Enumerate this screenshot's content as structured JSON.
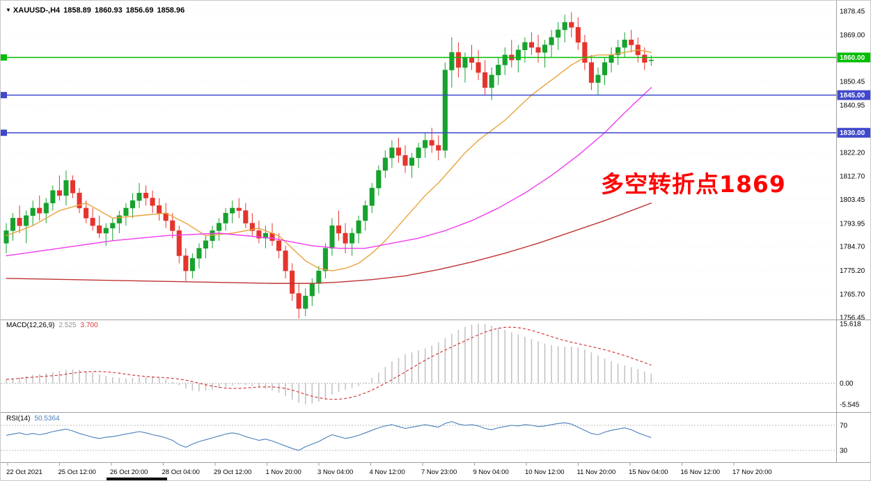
{
  "quote_bar": {
    "dropdown_icon": "▼",
    "symbol": "XAUUSD-,H4",
    "open": "1858.89",
    "high": "1860.93",
    "low": "1856.69",
    "close": "1858.96"
  },
  "annotation": {
    "text": "多空转折点1869",
    "color": "#FF0000"
  },
  "panels": {
    "macd": {
      "label": "MACD(12,26,9)",
      "value_main": "2.525",
      "value_signal": "3.700",
      "axis_labels": [
        "15.618",
        "0.00",
        "-5.545"
      ]
    },
    "rsi": {
      "label": "RSI(14)",
      "value": "50.5364",
      "levels": [
        "70",
        "30"
      ]
    }
  },
  "price_axis": {
    "ticks": [
      "1878.45",
      "1869.00",
      "1850.45",
      "1840.95",
      "1822.20",
      "1812.70",
      "1803.45",
      "1793.95",
      "1784.70",
      "1775.20",
      "1765.70",
      "1756.45"
    ]
  },
  "time_axis": {
    "labels": [
      "22 Oct 2021",
      "25 Oct 12:00",
      "26 Oct 20:00",
      "28 Oct 04:00",
      "29 Oct 12:00",
      "1 Nov 20:00",
      "3 Nov 04:00",
      "4 Nov 12:00",
      "7 Nov 23:00",
      "9 Nov 04:00",
      "10 Nov 12:00",
      "11 Nov 20:00",
      "15 Nov 04:00",
      "16 Nov 12:00",
      "17 Nov 20:00"
    ]
  },
  "chart_data": {
    "type": "candlestick",
    "symbol": "XAUUSD",
    "timeframe": "H4",
    "price_range": [
      1756.45,
      1878.45
    ],
    "candle_colors": {
      "up": "#16A22D",
      "down": "#E5342D"
    },
    "candles": [
      [
        1786,
        1794,
        1782,
        1791
      ],
      [
        1791,
        1798,
        1787,
        1796
      ],
      [
        1796,
        1801,
        1790,
        1793
      ],
      [
        1793,
        1799,
        1786,
        1797
      ],
      [
        1797,
        1803,
        1793,
        1800
      ],
      [
        1800,
        1805,
        1795,
        1798
      ],
      [
        1798,
        1804,
        1794,
        1802
      ],
      [
        1802,
        1809,
        1799,
        1807
      ],
      [
        1807,
        1813,
        1803,
        1805
      ],
      [
        1805,
        1815,
        1801,
        1811
      ],
      [
        1811,
        1813,
        1804,
        1806
      ],
      [
        1806,
        1808,
        1798,
        1800
      ],
      [
        1800,
        1803,
        1794,
        1796
      ],
      [
        1796,
        1800,
        1791,
        1793
      ],
      [
        1793,
        1797,
        1788,
        1790
      ],
      [
        1790,
        1794,
        1785,
        1792
      ],
      [
        1792,
        1796,
        1787,
        1794
      ],
      [
        1794,
        1799,
        1790,
        1797
      ],
      [
        1797,
        1802,
        1793,
        1800
      ],
      [
        1800,
        1806,
        1796,
        1803
      ],
      [
        1803,
        1810,
        1800,
        1806
      ],
      [
        1806,
        1809,
        1801,
        1804
      ],
      [
        1804,
        1807,
        1798,
        1801
      ],
      [
        1801,
        1804,
        1795,
        1798
      ],
      [
        1798,
        1802,
        1792,
        1795
      ],
      [
        1795,
        1798,
        1788,
        1791
      ],
      [
        1791,
        1793,
        1778,
        1781
      ],
      [
        1781,
        1784,
        1771,
        1775
      ],
      [
        1775,
        1782,
        1772,
        1780
      ],
      [
        1780,
        1786,
        1776,
        1784
      ],
      [
        1784,
        1789,
        1780,
        1787
      ],
      [
        1787,
        1793,
        1784,
        1791
      ],
      [
        1791,
        1796,
        1787,
        1794
      ],
      [
        1794,
        1800,
        1791,
        1798
      ],
      [
        1798,
        1803,
        1794,
        1800
      ],
      [
        1800,
        1804,
        1796,
        1799
      ],
      [
        1799,
        1802,
        1792,
        1794
      ],
      [
        1794,
        1798,
        1789,
        1791
      ],
      [
        1791,
        1795,
        1786,
        1788
      ],
      [
        1788,
        1793,
        1784,
        1790
      ],
      [
        1790,
        1794,
        1785,
        1787
      ],
      [
        1787,
        1790,
        1780,
        1783
      ],
      [
        1783,
        1785,
        1772,
        1775
      ],
      [
        1775,
        1778,
        1763,
        1766
      ],
      [
        1766,
        1770,
        1756,
        1760
      ],
      [
        1760,
        1768,
        1757,
        1765
      ],
      [
        1765,
        1772,
        1761,
        1770
      ],
      [
        1770,
        1777,
        1766,
        1775
      ],
      [
        1775,
        1786,
        1772,
        1784
      ],
      [
        1784,
        1796,
        1781,
        1793
      ],
      [
        1793,
        1799,
        1787,
        1790
      ],
      [
        1790,
        1794,
        1782,
        1786
      ],
      [
        1786,
        1792,
        1781,
        1790
      ],
      [
        1790,
        1797,
        1786,
        1795
      ],
      [
        1795,
        1803,
        1791,
        1801
      ],
      [
        1801,
        1810,
        1798,
        1808
      ],
      [
        1808,
        1817,
        1805,
        1815
      ],
      [
        1815,
        1823,
        1812,
        1820
      ],
      [
        1820,
        1827,
        1816,
        1824
      ],
      [
        1824,
        1828,
        1818,
        1821
      ],
      [
        1821,
        1825,
        1814,
        1817
      ],
      [
        1817,
        1822,
        1812,
        1820
      ],
      [
        1820,
        1826,
        1816,
        1824
      ],
      [
        1824,
        1830,
        1820,
        1827
      ],
      [
        1827,
        1832,
        1822,
        1825
      ],
      [
        1825,
        1829,
        1819,
        1823
      ],
      [
        1823,
        1858,
        1820,
        1855
      ],
      [
        1855,
        1868,
        1848,
        1862
      ],
      [
        1862,
        1866,
        1852,
        1856
      ],
      [
        1856,
        1862,
        1850,
        1860
      ],
      [
        1860,
        1865,
        1855,
        1858
      ],
      [
        1858,
        1863,
        1851,
        1854
      ],
      [
        1854,
        1859,
        1845,
        1848
      ],
      [
        1848,
        1856,
        1843,
        1853
      ],
      [
        1853,
        1860,
        1849,
        1857
      ],
      [
        1857,
        1864,
        1853,
        1861
      ],
      [
        1861,
        1867,
        1856,
        1859
      ],
      [
        1859,
        1865,
        1854,
        1863
      ],
      [
        1863,
        1868,
        1858,
        1866
      ],
      [
        1866,
        1870,
        1861,
        1864
      ],
      [
        1864,
        1869,
        1858,
        1862
      ],
      [
        1862,
        1867,
        1856,
        1865
      ],
      [
        1865,
        1871,
        1860,
        1868
      ],
      [
        1868,
        1874,
        1863,
        1871
      ],
      [
        1871,
        1877,
        1866,
        1874
      ],
      [
        1874,
        1878,
        1868,
        1872
      ],
      [
        1872,
        1876,
        1863,
        1866
      ],
      [
        1866,
        1869,
        1855,
        1858
      ],
      [
        1858,
        1861,
        1847,
        1850
      ],
      [
        1850,
        1856,
        1845,
        1853
      ],
      [
        1853,
        1860,
        1849,
        1858
      ],
      [
        1858,
        1864,
        1854,
        1861
      ],
      [
        1861,
        1867,
        1857,
        1864
      ],
      [
        1864,
        1870,
        1860,
        1867
      ],
      [
        1867,
        1871,
        1862,
        1865
      ],
      [
        1865,
        1868,
        1858,
        1861
      ],
      [
        1861,
        1864,
        1855,
        1858
      ],
      [
        1858.9,
        1860.9,
        1856.7,
        1859
      ]
    ],
    "hlines": [
      {
        "price": 1860.0,
        "label": "1860.00",
        "color": "#00BE00"
      },
      {
        "price": 1845.0,
        "label": "1845.00",
        "color": "#3F48CC"
      },
      {
        "price": 1830.0,
        "label": "1830.00",
        "color": "#3F48CC"
      }
    ],
    "moving_averages": [
      {
        "name": "ma-fast",
        "color": "#E8A33A",
        "points": [
          [
            0,
            1789
          ],
          [
            4,
            1793
          ],
          [
            8,
            1799
          ],
          [
            12,
            1802
          ],
          [
            16,
            1796
          ],
          [
            20,
            1797
          ],
          [
            24,
            1798
          ],
          [
            27,
            1794
          ],
          [
            30,
            1789
          ],
          [
            34,
            1790
          ],
          [
            38,
            1792
          ],
          [
            41,
            1789
          ],
          [
            43,
            1784
          ],
          [
            45,
            1779
          ],
          [
            47,
            1776
          ],
          [
            49,
            1775
          ],
          [
            51,
            1776
          ],
          [
            53,
            1778
          ],
          [
            55,
            1782
          ],
          [
            57,
            1787
          ],
          [
            59,
            1793
          ],
          [
            61,
            1799
          ],
          [
            63,
            1805
          ],
          [
            65,
            1810
          ],
          [
            67,
            1816
          ],
          [
            69,
            1822
          ],
          [
            71,
            1827
          ],
          [
            73,
            1831
          ],
          [
            75,
            1835
          ],
          [
            77,
            1840
          ],
          [
            79,
            1845
          ],
          [
            81,
            1849
          ],
          [
            83,
            1853
          ],
          [
            85,
            1857
          ],
          [
            87,
            1860
          ],
          [
            89,
            1861
          ],
          [
            91,
            1861
          ],
          [
            93,
            1862
          ],
          [
            95,
            1863
          ],
          [
            97,
            1862
          ]
        ]
      },
      {
        "name": "ma-mid",
        "color": "#F03CF0",
        "points": [
          [
            0,
            1781
          ],
          [
            8,
            1784
          ],
          [
            16,
            1787
          ],
          [
            24,
            1789
          ],
          [
            32,
            1790
          ],
          [
            40,
            1788
          ],
          [
            46,
            1785
          ],
          [
            50,
            1784
          ],
          [
            54,
            1784
          ],
          [
            58,
            1786
          ],
          [
            62,
            1788
          ],
          [
            66,
            1791
          ],
          [
            70,
            1795
          ],
          [
            74,
            1800
          ],
          [
            78,
            1806
          ],
          [
            82,
            1813
          ],
          [
            86,
            1821
          ],
          [
            90,
            1830
          ],
          [
            93,
            1838
          ],
          [
            95,
            1843
          ],
          [
            97,
            1848
          ]
        ]
      },
      {
        "name": "ma-slow",
        "color": "#BE3232",
        "points": [
          [
            0,
            1772
          ],
          [
            10,
            1771.5
          ],
          [
            20,
            1771
          ],
          [
            30,
            1770.5
          ],
          [
            40,
            1770
          ],
          [
            46,
            1770
          ],
          [
            50,
            1770.5
          ],
          [
            55,
            1771.5
          ],
          [
            60,
            1773
          ],
          [
            65,
            1775.5
          ],
          [
            70,
            1778.5
          ],
          [
            75,
            1782
          ],
          [
            80,
            1786
          ],
          [
            85,
            1790.5
          ],
          [
            90,
            1795
          ],
          [
            94,
            1799
          ],
          [
            97,
            1802
          ]
        ]
      }
    ],
    "macd": {
      "params": "12,26,9",
      "range": [
        -5.545,
        15.618
      ],
      "current_main": 2.525,
      "current_signal": 3.7,
      "histogram_color": "#C0C0C0",
      "signal_color": "#D43A3A",
      "histogram": [
        1.0,
        1.3,
        1.6,
        1.9,
        2.2,
        2.4,
        2.6,
        2.9,
        3.2,
        3.5,
        3.6,
        3.5,
        3.2,
        2.8,
        2.3,
        1.9,
        1.6,
        1.4,
        1.3,
        1.4,
        1.6,
        1.7,
        1.6,
        1.4,
        1.0,
        0.4,
        -0.5,
        -1.4,
        -1.9,
        -2.1,
        -2.0,
        -1.7,
        -1.3,
        -0.9,
        -0.5,
        -0.3,
        -0.4,
        -0.7,
        -1.1,
        -1.5,
        -1.9,
        -2.5,
        -3.4,
        -4.3,
        -5.1,
        -5.5,
        -5.3,
        -4.8,
        -4.0,
        -3.0,
        -2.2,
        -1.7,
        -1.3,
        -0.7,
        0.2,
        1.4,
        2.8,
        4.3,
        5.7,
        6.7,
        7.6,
        8.1,
        8.6,
        9.2,
        9.9,
        10.7,
        11.8,
        13.0,
        14.0,
        14.8,
        15.3,
        15.618,
        15.5,
        15.1,
        14.6,
        14.0,
        13.4,
        12.8,
        12.2,
        11.6,
        11.0,
        10.4,
        10.0,
        9.7,
        9.6,
        9.6,
        9.3,
        8.8,
        8.1,
        7.3,
        6.5,
        5.8,
        5.2,
        4.7,
        4.2,
        3.7,
        3.1,
        2.525
      ]
    },
    "rsi": {
      "period": 14,
      "current": 50.5364,
      "levels": [
        70,
        30
      ],
      "color": "#4A7EBB",
      "values": [
        54,
        56,
        58,
        55,
        57,
        55,
        57,
        60,
        62,
        64,
        61,
        57,
        54,
        51,
        49,
        51,
        52,
        54,
        56,
        58,
        60,
        58,
        55,
        53,
        50,
        46,
        39,
        35,
        40,
        44,
        47,
        50,
        53,
        56,
        58,
        56,
        52,
        49,
        46,
        48,
        45,
        41,
        37,
        33,
        30,
        36,
        40,
        44,
        50,
        55,
        52,
        49,
        51,
        54,
        58,
        62,
        66,
        69,
        71,
        68,
        65,
        67,
        69,
        71,
        69,
        67,
        73,
        76,
        72,
        70,
        71,
        69,
        65,
        63,
        66,
        68,
        70,
        69,
        71,
        70,
        68,
        69,
        71,
        73,
        74,
        72,
        67,
        62,
        57,
        55,
        59,
        62,
        64,
        66,
        63,
        58,
        54,
        50.5
      ]
    }
  }
}
